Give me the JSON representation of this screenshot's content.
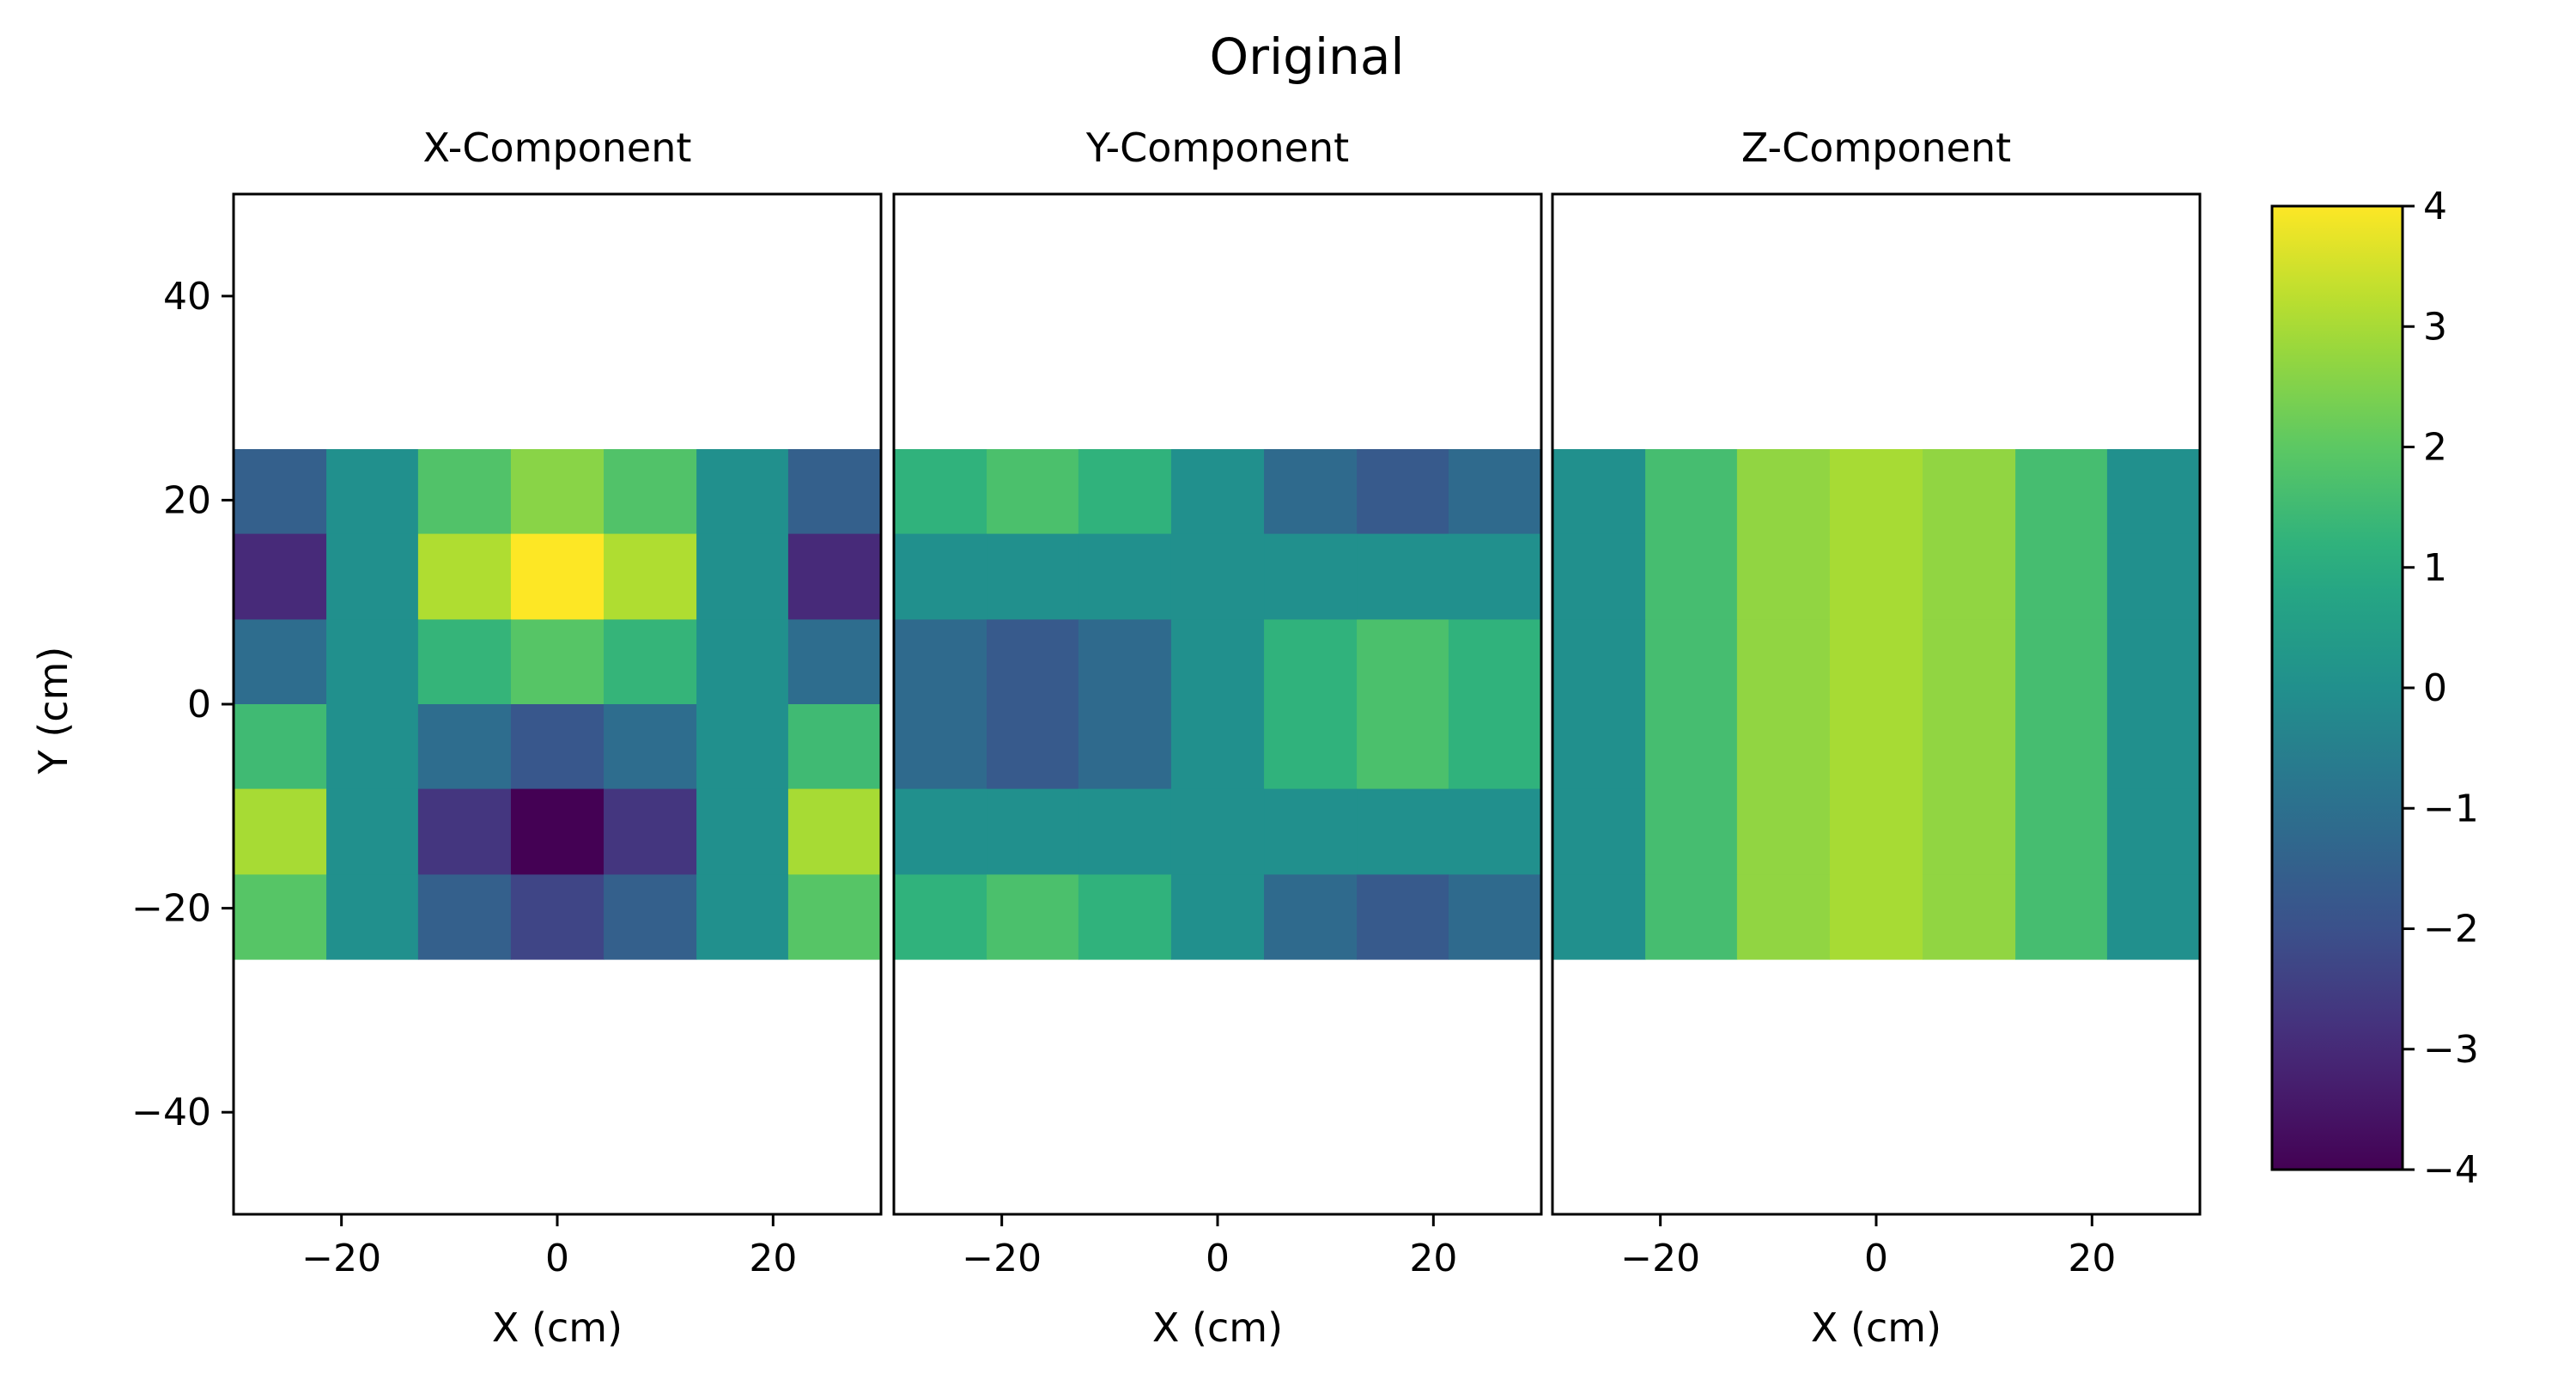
{
  "chart_data": {
    "type": "heatmap",
    "title": "Original",
    "colormap": "viridis",
    "xlabel": "X (cm)",
    "ylabel": "Y (cm)",
    "xlim": [
      -30,
      30
    ],
    "ylim": [
      -50,
      50
    ],
    "xticks": [
      -20,
      0,
      20
    ],
    "xtick_labels": [
      "−20",
      "0",
      "20"
    ],
    "yticks": [
      40,
      20,
      0,
      -20,
      -40
    ],
    "ytick_labels": [
      "40",
      "20",
      "0",
      "−20",
      "−40"
    ],
    "grid": false,
    "cell_x_edges": [
      -30,
      -21.4,
      -12.9,
      -4.3,
      4.3,
      12.9,
      21.4,
      30
    ],
    "cell_y_edges": [
      25,
      16.7,
      8.3,
      0,
      -8.3,
      -16.7,
      -25
    ],
    "colorbar": {
      "range": [
        -4,
        4
      ],
      "ticks": [
        4,
        3,
        2,
        1,
        0,
        -1,
        -2,
        -3,
        -4
      ],
      "tick_labels": [
        "4",
        "3",
        "2",
        "1",
        "0",
        "−1",
        "−2",
        "−3",
        "−4"
      ]
    },
    "panels": [
      {
        "title": "X-Component",
        "rows": [
          [
            -1.5,
            0,
            1.8,
            2.6,
            1.8,
            0,
            -1.5
          ],
          [
            -3.0,
            0,
            3.1,
            4.0,
            3.1,
            0,
            -3.0
          ],
          [
            -1.1,
            0,
            1.3,
            1.9,
            1.3,
            0,
            -1.1
          ],
          [
            1.5,
            0,
            -1.1,
            -1.8,
            -1.1,
            0,
            1.5
          ],
          [
            3.0,
            0,
            -2.7,
            -4.0,
            -2.7,
            0,
            3.0
          ],
          [
            1.9,
            0,
            -1.5,
            -2.3,
            -1.5,
            0,
            1.9
          ]
        ]
      },
      {
        "title": "Y-Component",
        "rows": [
          [
            1.2,
            1.7,
            1.2,
            0,
            -1.2,
            -1.7,
            -1.2
          ],
          [
            0,
            0,
            0,
            0,
            0,
            0,
            0
          ],
          [
            -1.2,
            -1.7,
            -1.2,
            0,
            1.2,
            1.7,
            1.2
          ],
          [
            -1.2,
            -1.7,
            -1.2,
            0,
            1.2,
            1.7,
            1.2
          ],
          [
            0,
            0,
            0,
            0,
            0,
            0,
            0
          ],
          [
            1.2,
            1.7,
            1.2,
            0,
            -1.2,
            -1.7,
            -1.2
          ]
        ]
      },
      {
        "title": "Z-Component",
        "rows": [
          [
            0,
            1.6,
            2.7,
            3.0,
            2.7,
            1.6,
            0
          ],
          [
            0,
            1.6,
            2.7,
            3.0,
            2.7,
            1.6,
            0
          ],
          [
            0,
            1.6,
            2.7,
            3.0,
            2.7,
            1.6,
            0
          ],
          [
            0,
            1.6,
            2.7,
            3.0,
            2.7,
            1.6,
            0
          ],
          [
            0,
            1.6,
            2.7,
            3.0,
            2.7,
            1.6,
            0
          ],
          [
            0,
            1.6,
            2.7,
            3.0,
            2.7,
            1.6,
            0
          ]
        ]
      }
    ]
  }
}
